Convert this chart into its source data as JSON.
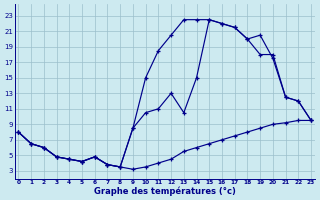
{
  "xlabel": "Graphe des températures (°c)",
  "x_ticks": [
    0,
    1,
    2,
    3,
    4,
    5,
    6,
    7,
    8,
    9,
    10,
    11,
    12,
    13,
    14,
    15,
    16,
    17,
    18,
    19,
    20,
    21,
    22,
    23
  ],
  "y_ticks": [
    3,
    5,
    7,
    9,
    11,
    13,
    15,
    17,
    19,
    21,
    23
  ],
  "ylim": [
    2,
    24.5
  ],
  "xlim": [
    -0.3,
    23.3
  ],
  "bg_color": "#cdeaf0",
  "line_color": "#00008b",
  "grid_color": "#9bbfcc",
  "line_min_x": [
    0,
    1,
    2,
    3,
    4,
    5,
    6,
    7,
    8,
    9,
    10,
    11,
    12,
    13,
    14,
    15,
    16,
    17,
    18,
    19,
    20,
    21,
    22,
    23
  ],
  "line_min_y": [
    8.0,
    6.5,
    6.0,
    4.8,
    4.5,
    4.2,
    4.8,
    3.8,
    3.5,
    3.2,
    3.5,
    4.0,
    4.5,
    5.5,
    6.0,
    6.5,
    7.0,
    7.5,
    8.0,
    8.5,
    9.0,
    9.2,
    9.5,
    9.5
  ],
  "line_max_x": [
    0,
    1,
    2,
    3,
    4,
    5,
    6,
    7,
    8,
    9,
    10,
    11,
    12,
    13,
    14,
    15,
    16,
    17,
    18,
    19,
    20,
    21,
    22,
    23
  ],
  "line_max_y": [
    8.0,
    6.5,
    6.0,
    4.8,
    4.5,
    4.2,
    4.8,
    3.8,
    3.5,
    8.5,
    15.0,
    18.5,
    20.5,
    22.5,
    22.5,
    22.5,
    22.0,
    21.5,
    20.0,
    20.5,
    17.5,
    12.5,
    12.0,
    9.5
  ],
  "line_cur_x": [
    0,
    1,
    2,
    3,
    4,
    5,
    6,
    7,
    8,
    9,
    10,
    11,
    12,
    13,
    14,
    15,
    16,
    17,
    18,
    19,
    20,
    21,
    22,
    23
  ],
  "line_cur_y": [
    8.0,
    6.5,
    6.0,
    4.8,
    4.5,
    4.2,
    4.8,
    3.8,
    3.5,
    8.5,
    10.5,
    11.0,
    13.0,
    10.5,
    15.0,
    22.5,
    22.0,
    21.5,
    20.0,
    18.0,
    18.0,
    12.5,
    12.0,
    9.5
  ]
}
